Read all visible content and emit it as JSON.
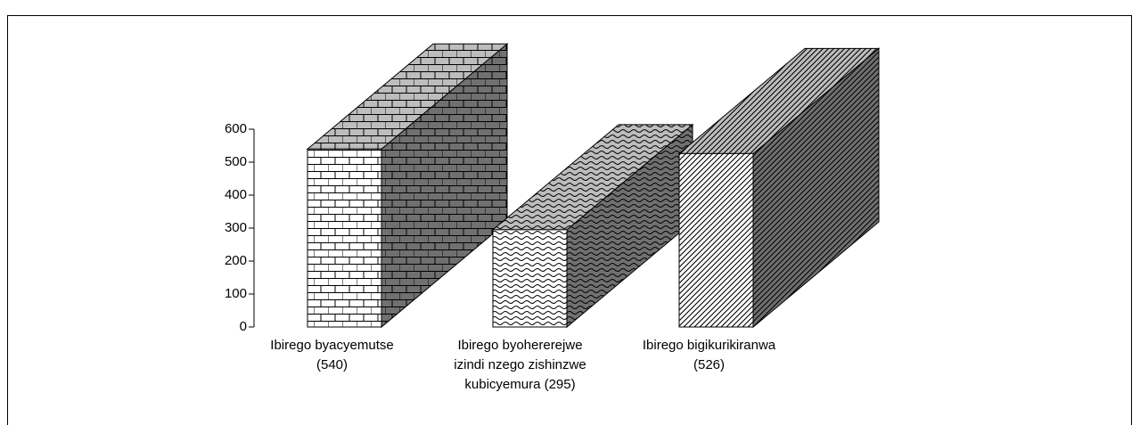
{
  "chart_data": {
    "type": "bar3d",
    "categories": [
      [
        "Ibirego byacyemutse",
        "(540)"
      ],
      [
        "Ibirego byohererejwe",
        "izindi nzego zishinzwe",
        "kubicyemura (295)"
      ],
      [
        "Ibirego bigikurikiranwa",
        "(526)"
      ]
    ],
    "values": [
      540,
      295,
      526
    ],
    "patterns": [
      "brick",
      "wave",
      "diagonal"
    ],
    "ylim": [
      0,
      600
    ],
    "yticks": [
      0,
      100,
      200,
      300,
      400,
      500,
      600
    ]
  }
}
